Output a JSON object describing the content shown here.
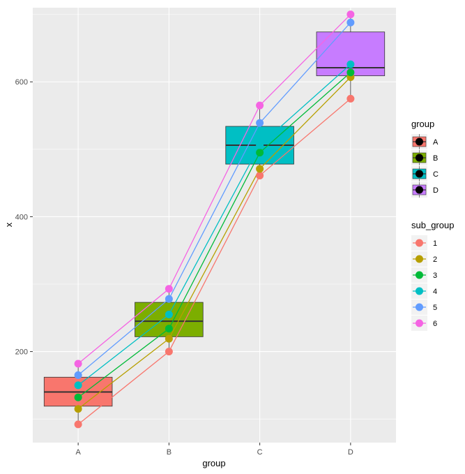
{
  "chart_data": {
    "type": "box",
    "xlabel": "group",
    "ylabel": "x",
    "categories": [
      "A",
      "B",
      "C",
      "D"
    ],
    "y_ticks": [
      200,
      400,
      600
    ],
    "ylim": [
      65,
      710
    ],
    "grid": true,
    "legend_position": "right",
    "boxes": [
      {
        "category": "A",
        "fill": "#F8766D",
        "whisker_low": 92,
        "q1": 119,
        "median": 140,
        "q3": 162,
        "whisker_high": 182
      },
      {
        "category": "B",
        "fill": "#7CAE00",
        "whisker_low": 200,
        "q1": 222,
        "median": 245,
        "q3": 273,
        "whisker_high": 293
      },
      {
        "category": "C",
        "fill": "#00BFC4",
        "whisker_low": 461,
        "q1": 478,
        "median": 506,
        "q3": 534,
        "whisker_high": 565
      },
      {
        "category": "D",
        "fill": "#C77CFF",
        "whisker_low": 575,
        "q1": 609,
        "median": 621,
        "q3": 674,
        "whisker_high": 700
      }
    ],
    "series": [
      {
        "name": "1",
        "color": "#F8766D",
        "values": [
          92,
          200,
          461,
          575
        ]
      },
      {
        "name": "2",
        "color": "#B79F00",
        "values": [
          115,
          219,
          471,
          607
        ]
      },
      {
        "name": "3",
        "color": "#00BA38",
        "values": [
          132,
          234,
          495,
          614
        ]
      },
      {
        "name": "4",
        "color": "#00BFC4",
        "values": [
          150,
          255,
          506,
          626
        ]
      },
      {
        "name": "5",
        "color": "#619CFF",
        "values": [
          165,
          278,
          539,
          688
        ]
      },
      {
        "name": "6",
        "color": "#F564E3",
        "values": [
          182,
          293,
          565,
          700
        ]
      }
    ],
    "legends": {
      "group": {
        "title": "group",
        "items": [
          {
            "label": "A",
            "fill": "#F8766D"
          },
          {
            "label": "B",
            "fill": "#7CAE00"
          },
          {
            "label": "C",
            "fill": "#00BFC4"
          },
          {
            "label": "D",
            "fill": "#C77CFF"
          }
        ]
      },
      "sub_group": {
        "title": "sub_group",
        "items": [
          {
            "label": "1",
            "color": "#F8766D"
          },
          {
            "label": "2",
            "color": "#B79F00"
          },
          {
            "label": "3",
            "color": "#00BA38"
          },
          {
            "label": "4",
            "color": "#00BFC4"
          },
          {
            "label": "5",
            "color": "#619CFF"
          },
          {
            "label": "6",
            "color": "#F564E3"
          }
        ]
      }
    }
  }
}
